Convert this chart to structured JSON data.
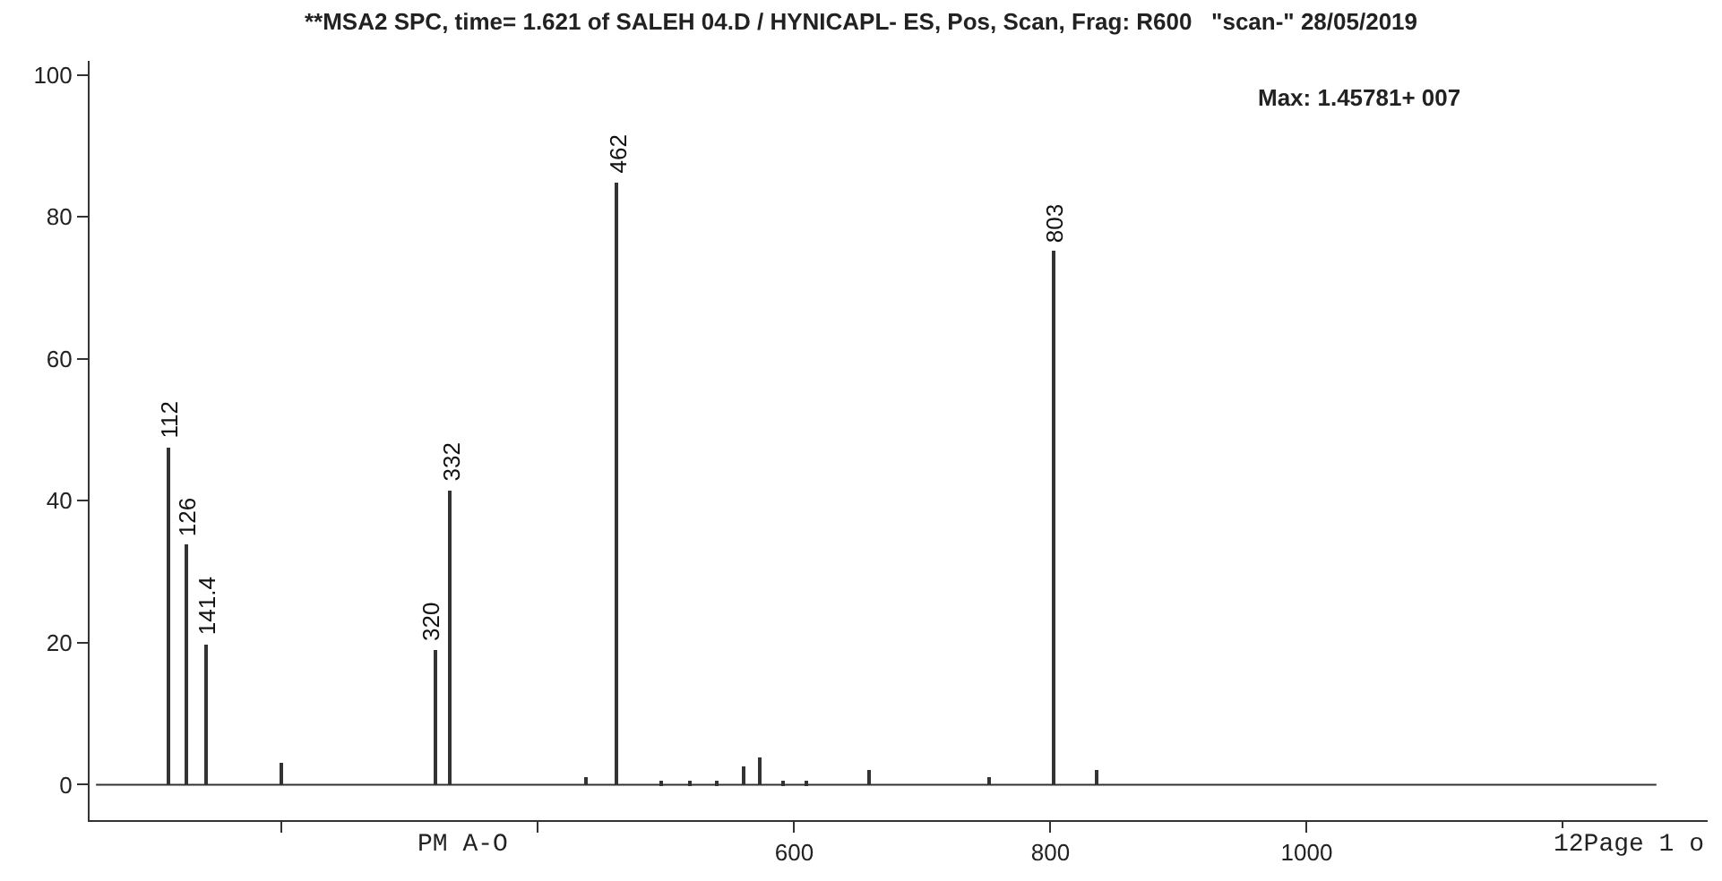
{
  "chart_data": {
    "type": "bar",
    "title": "**MSA2 SPC, time= 1.621 of SALEH 04.D / HYNICAPL- ES, Pos, Scan, Frag: R600   \"scan-\" 28/05/2019",
    "x": [
      112,
      126,
      141.4,
      200,
      320,
      332,
      438,
      462,
      496,
      519,
      540,
      561,
      573,
      592,
      610,
      659,
      753,
      803,
      836
    ],
    "values": [
      47.5,
      33.8,
      19.8,
      3.2,
      19,
      41.4,
      1,
      84.8,
      0.5,
      0.5,
      0.5,
      2.5,
      3.8,
      0.5,
      0.5,
      2,
      1,
      75.2,
      2
    ],
    "color": "#333333",
    "xlim": [
      50,
      1313
    ],
    "ylim": [
      -5,
      102
    ],
    "xticks": [
      {
        "value": 200,
        "label": null
      },
      {
        "value": 400,
        "label": null
      },
      600,
      800,
      1000,
      {
        "value": 1200,
        "label": null
      }
    ],
    "yticks": [
      0,
      20,
      40,
      60,
      80,
      100
    ],
    "ref_lines": [
      {
        "axis": "y",
        "value": 0,
        "label": null
      }
    ],
    "annotations": [
      "Max: 1.45781+ 007",
      "PM A-O",
      "12Page 1 o",
      {
        "text": "112",
        "x": 112,
        "y": 47.5
      },
      {
        "text": "126",
        "x": 126,
        "y": 33.8
      },
      {
        "text": "141.4",
        "x": 141.4,
        "y": 19.8
      },
      {
        "text": "320",
        "x": 320,
        "y": 19
      },
      {
        "text": "332",
        "x": 332,
        "y": 41.4
      },
      {
        "text": "462",
        "x": 462,
        "y": 84.8
      },
      {
        "text": "803",
        "x": 803,
        "y": 75.2
      }
    ],
    "grid": false
  }
}
